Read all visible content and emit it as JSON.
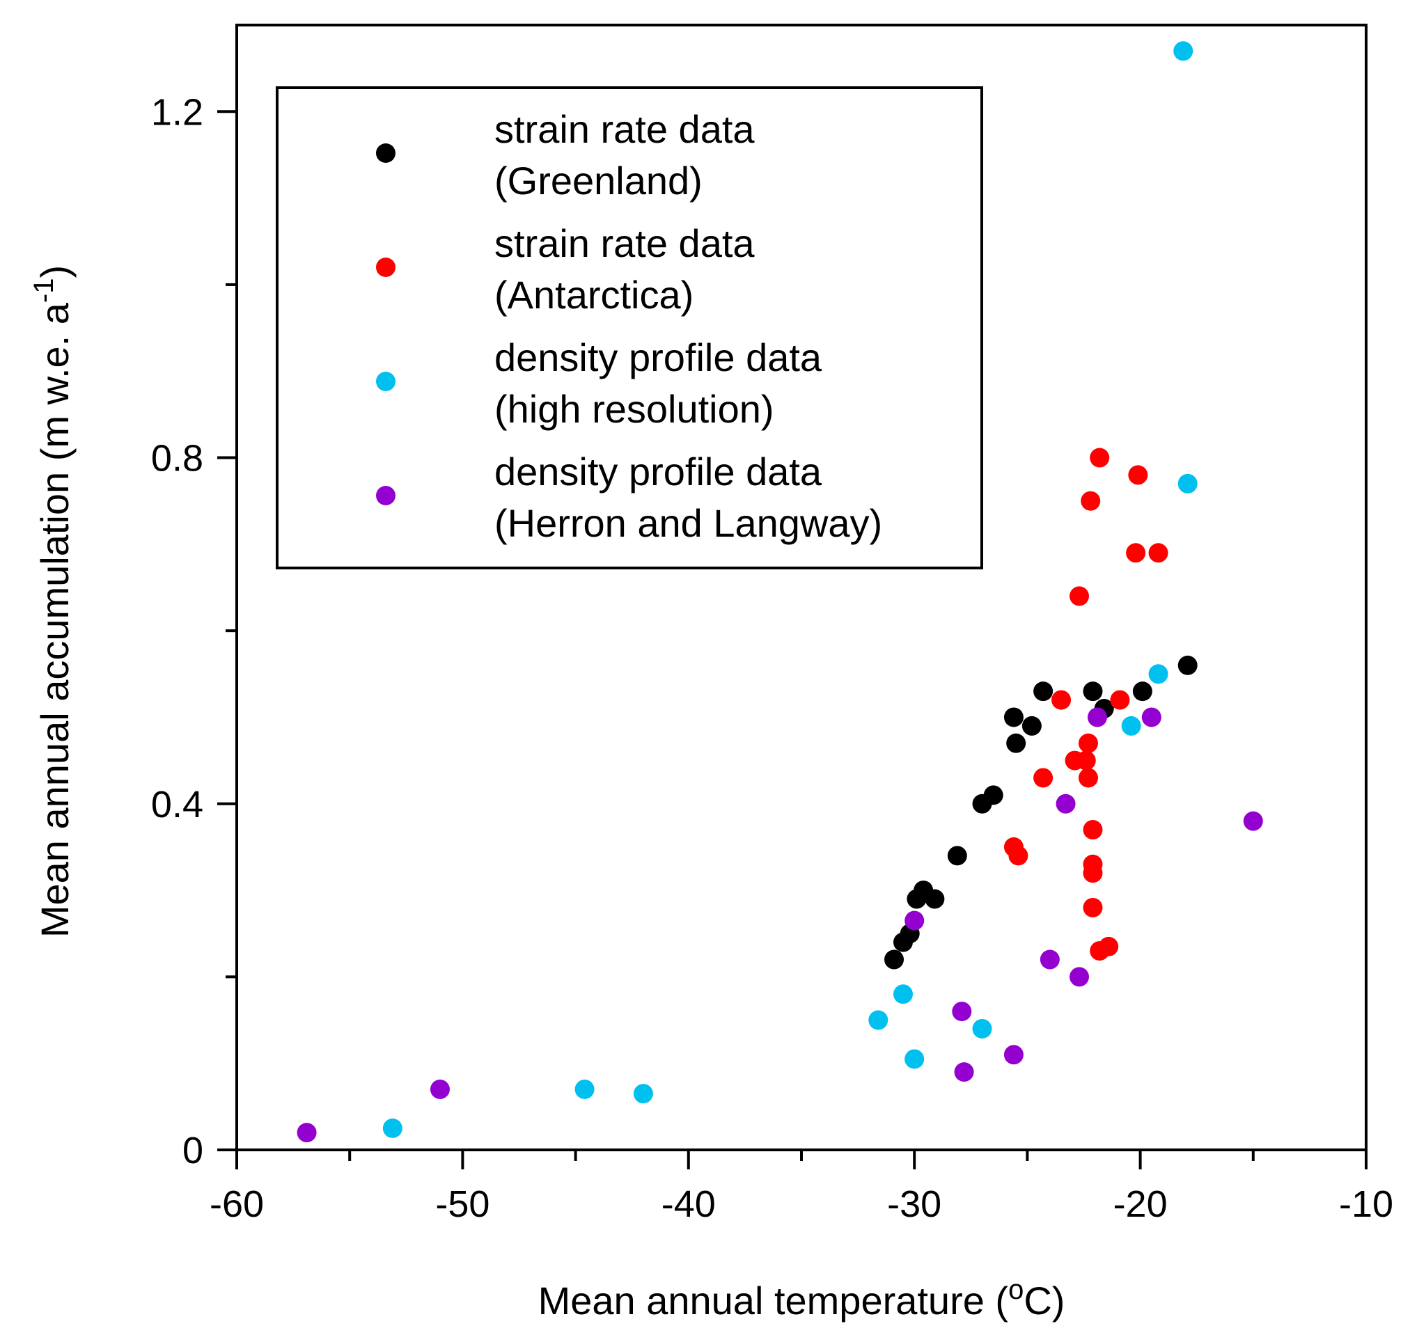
{
  "chart_data": {
    "type": "scatter",
    "title": "",
    "xlabel": "Mean annual temperature (",
    "xlabel_sup": "o",
    "xlabel_end": "C)",
    "ylabel": "Mean annual accumulation (m w.e. a",
    "ylabel_sup": "-1",
    "ylabel_end": ")",
    "xlim": [
      -60,
      -10
    ],
    "ylim": [
      0,
      1.3
    ],
    "x_ticks": [
      -60,
      -50,
      -40,
      -30,
      -20,
      -10
    ],
    "x_tick_labels": [
      "-60",
      "-50",
      "-40",
      "-30",
      "-20",
      "-10"
    ],
    "x_minor_ticks": [
      -55,
      -45,
      -35,
      -25,
      -15
    ],
    "y_ticks": [
      0,
      0.4,
      0.8,
      1.2
    ],
    "y_tick_labels": [
      "0",
      "0.4",
      "0.8",
      "1.2"
    ],
    "y_minor_ticks": [
      0.2,
      0.6,
      1.0
    ],
    "grid": false,
    "legend_position": "top-left",
    "series": [
      {
        "name": "strain rate data (Greenland)",
        "legend_lines": [
          "strain rate data",
          "(Greenland)"
        ],
        "color": "#000000",
        "x": [
          -30.9,
          -30.5,
          -30.2,
          -29.9,
          -29.6,
          -29.1,
          -28.1,
          -27.0,
          -26.5,
          -25.6,
          -25.5,
          -24.8,
          -24.3,
          -22.1,
          -21.6,
          -19.9,
          -17.9
        ],
        "y": [
          0.22,
          0.24,
          0.25,
          0.29,
          0.3,
          0.29,
          0.34,
          0.4,
          0.41,
          0.5,
          0.47,
          0.49,
          0.53,
          0.53,
          0.51,
          0.53,
          0.56
        ]
      },
      {
        "name": "strain rate data (Antarctica)",
        "legend_lines": [
          "strain rate data",
          "(Antarctica)"
        ],
        "color": "#ff0000",
        "x": [
          -21.8,
          -20.1,
          -22.2,
          -20.2,
          -19.2,
          -22.7,
          -23.5,
          -20.9,
          -22.3,
          -22.9,
          -22.4,
          -22.3,
          -24.3,
          -22.1,
          -25.6,
          -25.4,
          -22.1,
          -22.1,
          -22.1,
          -21.8,
          -21.4
        ],
        "y": [
          0.8,
          0.78,
          0.75,
          0.69,
          0.69,
          0.64,
          0.52,
          0.52,
          0.47,
          0.45,
          0.45,
          0.43,
          0.43,
          0.37,
          0.35,
          0.34,
          0.33,
          0.32,
          0.28,
          0.23,
          0.235
        ]
      },
      {
        "name": "density profile data (high resolution)",
        "legend_lines": [
          "density profile data",
          "(high resolution)"
        ],
        "color": "#00c0f0",
        "x": [
          -18.1,
          -17.9,
          -19.2,
          -20.4,
          -30.5,
          -31.6,
          -27.0,
          -30.0,
          -44.6,
          -42.0,
          -53.1
        ],
        "y": [
          1.27,
          0.77,
          0.55,
          0.49,
          0.18,
          0.15,
          0.14,
          0.105,
          0.07,
          0.065,
          0.025
        ]
      },
      {
        "name": "density profile data (Herron and Langway)",
        "legend_lines": [
          "density profile data",
          "(Herron and Langway)"
        ],
        "color": "#9400d0",
        "x": [
          -21.9,
          -19.5,
          -23.3,
          -15.0,
          -30.0,
          -24.0,
          -22.7,
          -27.9,
          -25.6,
          -27.8,
          -51.0,
          -56.9
        ],
        "y": [
          0.5,
          0.5,
          0.4,
          0.38,
          0.265,
          0.22,
          0.2,
          0.16,
          0.11,
          0.09,
          0.07,
          0.02
        ]
      }
    ]
  }
}
